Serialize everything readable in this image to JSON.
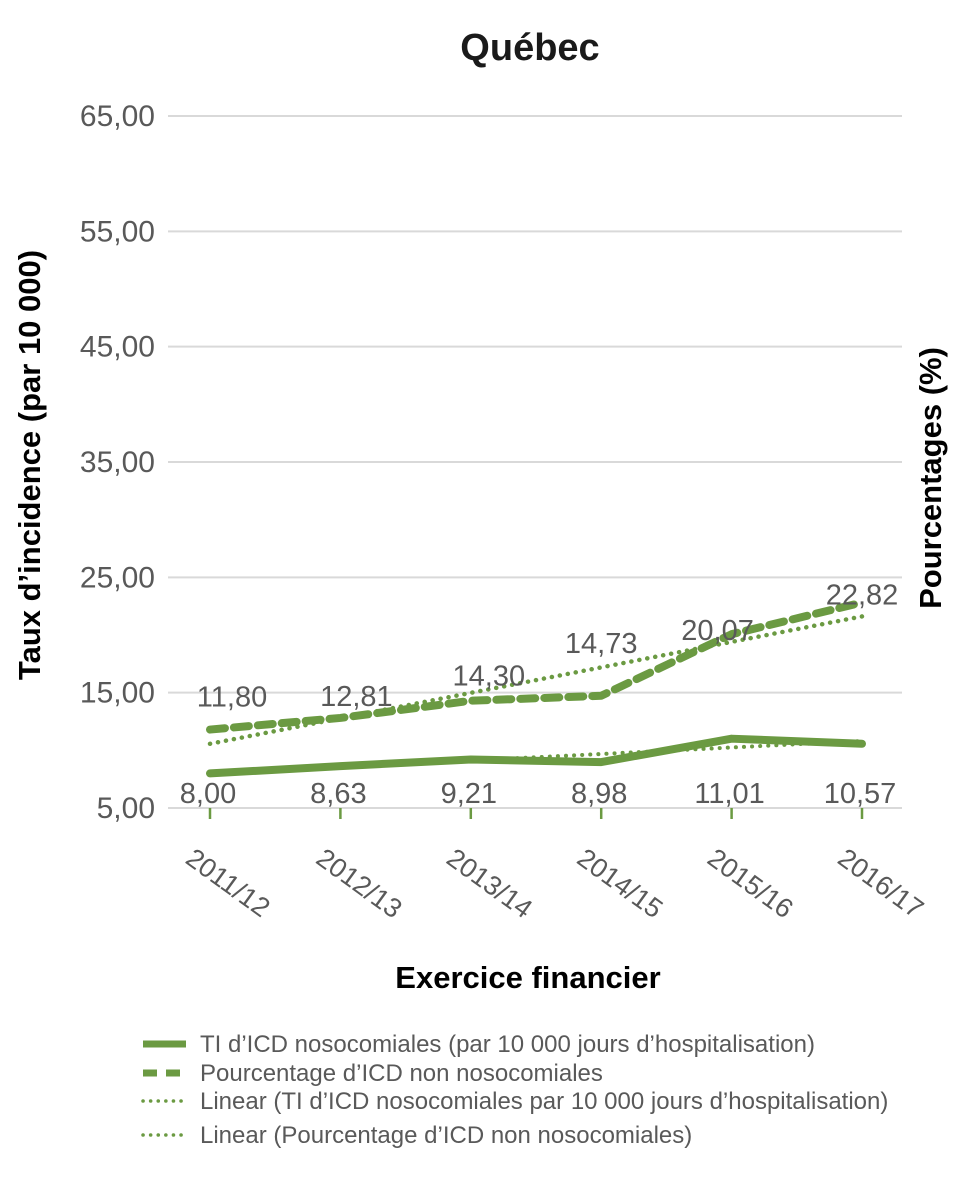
{
  "chart_data": {
    "type": "line",
    "title": "Québec",
    "xlabel": "Exercice financier",
    "ylabel_left": "Taux d’incidence (par 10 000)",
    "ylabel_right": "Pourcentages (%)",
    "ylim": [
      5,
      65
    ],
    "ytick_interval": 10,
    "yticks": [
      "5,00",
      "15,00",
      "25,00",
      "35,00",
      "45,00",
      "55,00",
      "65,00"
    ],
    "grid": true,
    "legend_position": "bottom-left",
    "categories": [
      "2011/12",
      "2012/13",
      "2013/14",
      "2014/15",
      "2015/16",
      "2016/17"
    ],
    "series": [
      {
        "name": "TI d’ICD nosocomiales (par 10 000 jours d’hospitalisation)",
        "style": "solid",
        "values": [
          8.0,
          8.63,
          9.21,
          8.98,
          11.01,
          10.57
        ],
        "labels": [
          "8,00",
          "8,63",
          "9,21",
          "8,98",
          "11,01",
          "10,57"
        ]
      },
      {
        "name": "Pourcentage d’ICD non nosocomiales",
        "style": "dashed",
        "values": [
          11.8,
          12.81,
          14.3,
          14.73,
          20.07,
          22.82
        ],
        "labels": [
          "11,80",
          "12,81",
          "14,30",
          "14,73",
          "20,07",
          "22,82"
        ]
      },
      {
        "name": "Linear (TI d’ICD nosocomiales par 10 000 jours d’hospitalisation)",
        "style": "dotted-trend",
        "trend_of": 0
      },
      {
        "name": "Linear (Pourcentage d’ICD non nosocomiales)",
        "style": "dotted-trend",
        "trend_of": 1
      }
    ],
    "colors": {
      "line_green": "#6b9a42",
      "label_grey": "#595959",
      "gridline_grey": "#d9d9d9",
      "title_black": "#000000"
    }
  }
}
